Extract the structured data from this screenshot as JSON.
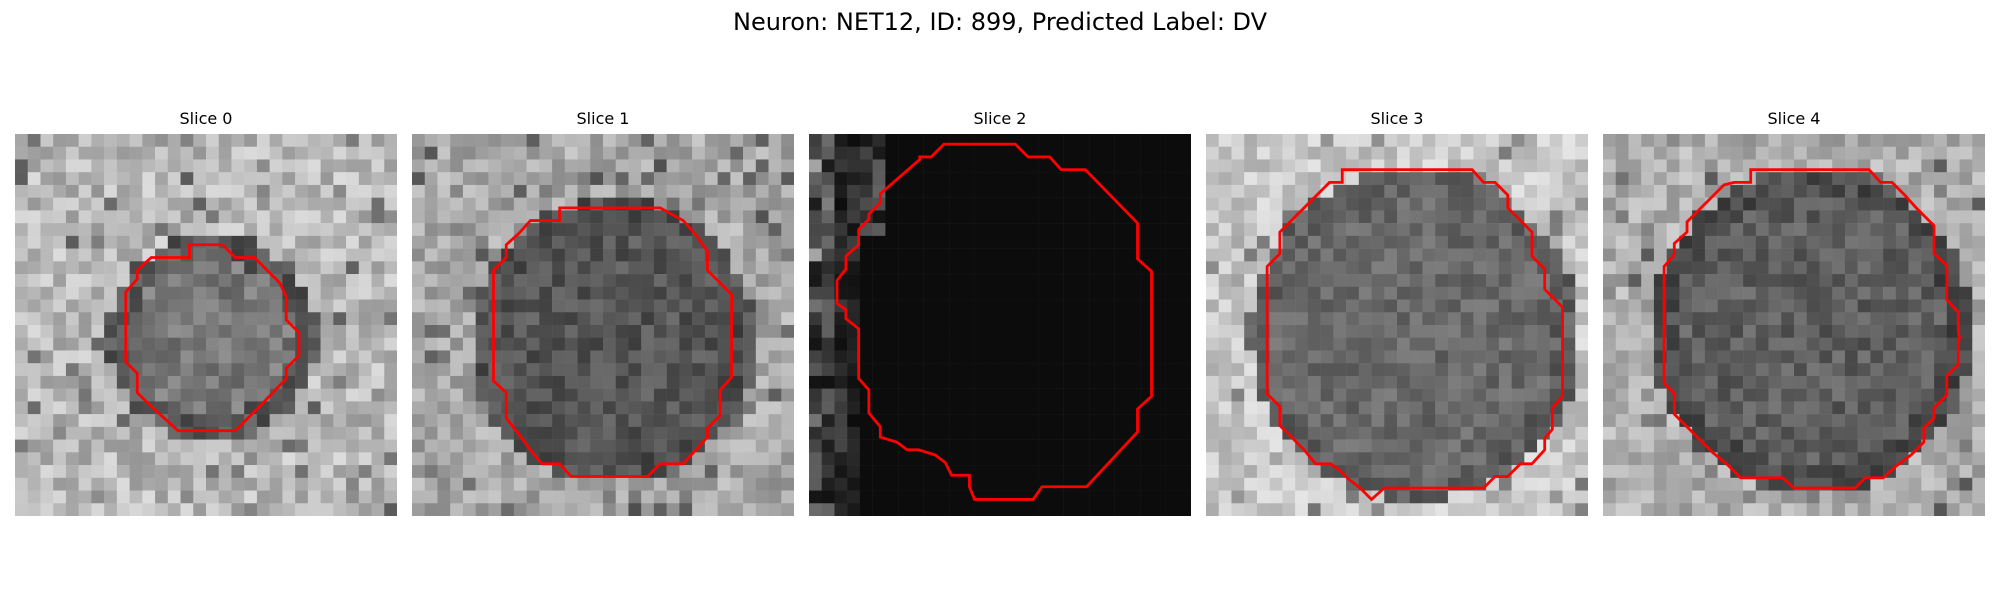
{
  "figure": {
    "title": "Neuron: NET12, ID: 899, Predicted Label: DV",
    "contour_color": "#ff0000"
  },
  "slices": [
    {
      "title": "Slice 0",
      "type": "grayscale-microscopy-with-contour"
    },
    {
      "title": "Slice 1",
      "type": "grayscale-microscopy-with-contour"
    },
    {
      "title": "Slice 2",
      "type": "dark-microscopy-with-contour"
    },
    {
      "title": "Slice 3",
      "type": "grayscale-microscopy-with-contour"
    },
    {
      "title": "Slice 4",
      "type": "grayscale-microscopy-with-contour"
    }
  ]
}
